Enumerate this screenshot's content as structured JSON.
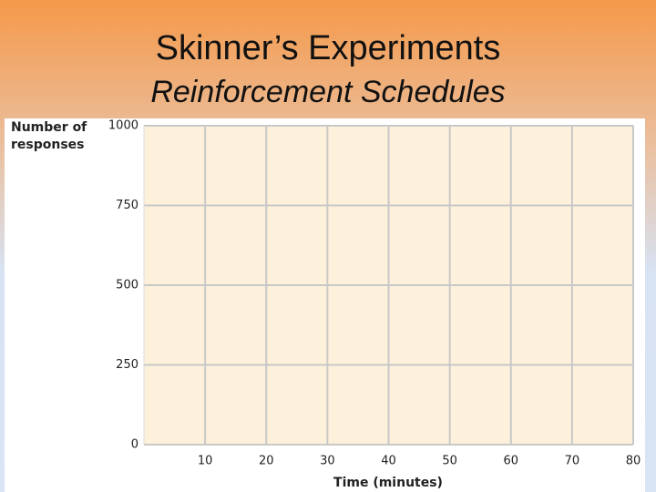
{
  "chart_data": {
    "type": "line",
    "title": "Skinner’s Experiments",
    "subtitle": "Reinforcement Schedules",
    "y_label": "Number of responses",
    "x_label": "Time (minutes)",
    "xlim": [
      0,
      80
    ],
    "xticks": [
      10,
      20,
      30,
      40,
      50,
      60,
      70,
      80
    ],
    "ylim": [
      0,
      1000
    ],
    "yticks": [
      0,
      250,
      500,
      750,
      1000
    ],
    "grid": true,
    "grid_color": "#c8c8c8",
    "plot_color": "#fdf1dc"
  }
}
